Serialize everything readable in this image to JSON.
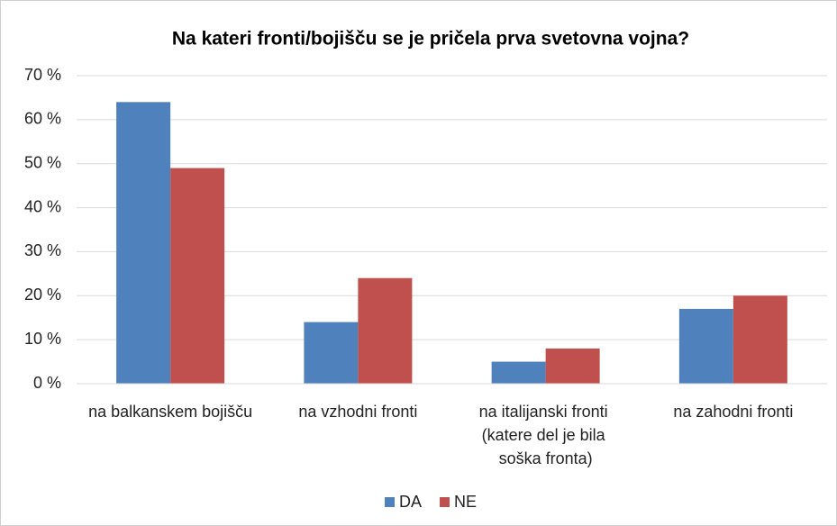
{
  "chart_data": {
    "type": "bar",
    "title": "Na kateri fronti/bojišču se je pričela prva svetovna vojna?",
    "categories": [
      "na balkanskem bojišču",
      "na vzhodni fronti",
      "na italijanski fronti (katere del je bila soška fronta)",
      "na zahodni fronti"
    ],
    "series": [
      {
        "name": "DA",
        "color": "#4f81bd",
        "values": [
          64,
          14,
          5,
          17
        ]
      },
      {
        "name": "NE",
        "color": "#c0504d",
        "values": [
          49,
          24,
          8,
          20
        ]
      }
    ],
    "ylim": [
      0,
      70
    ],
    "yticks": [
      {
        "value": 0,
        "label": "0 %"
      },
      {
        "value": 10,
        "label": "10 %"
      },
      {
        "value": 20,
        "label": "20 %"
      },
      {
        "value": 30,
        "label": "30 %"
      },
      {
        "value": 40,
        "label": "40 %"
      },
      {
        "value": 50,
        "label": "50 %"
      },
      {
        "value": 60,
        "label": "60 %"
      },
      {
        "value": 70,
        "label": "70 %"
      }
    ],
    "grid": true,
    "legend": "bottom"
  }
}
